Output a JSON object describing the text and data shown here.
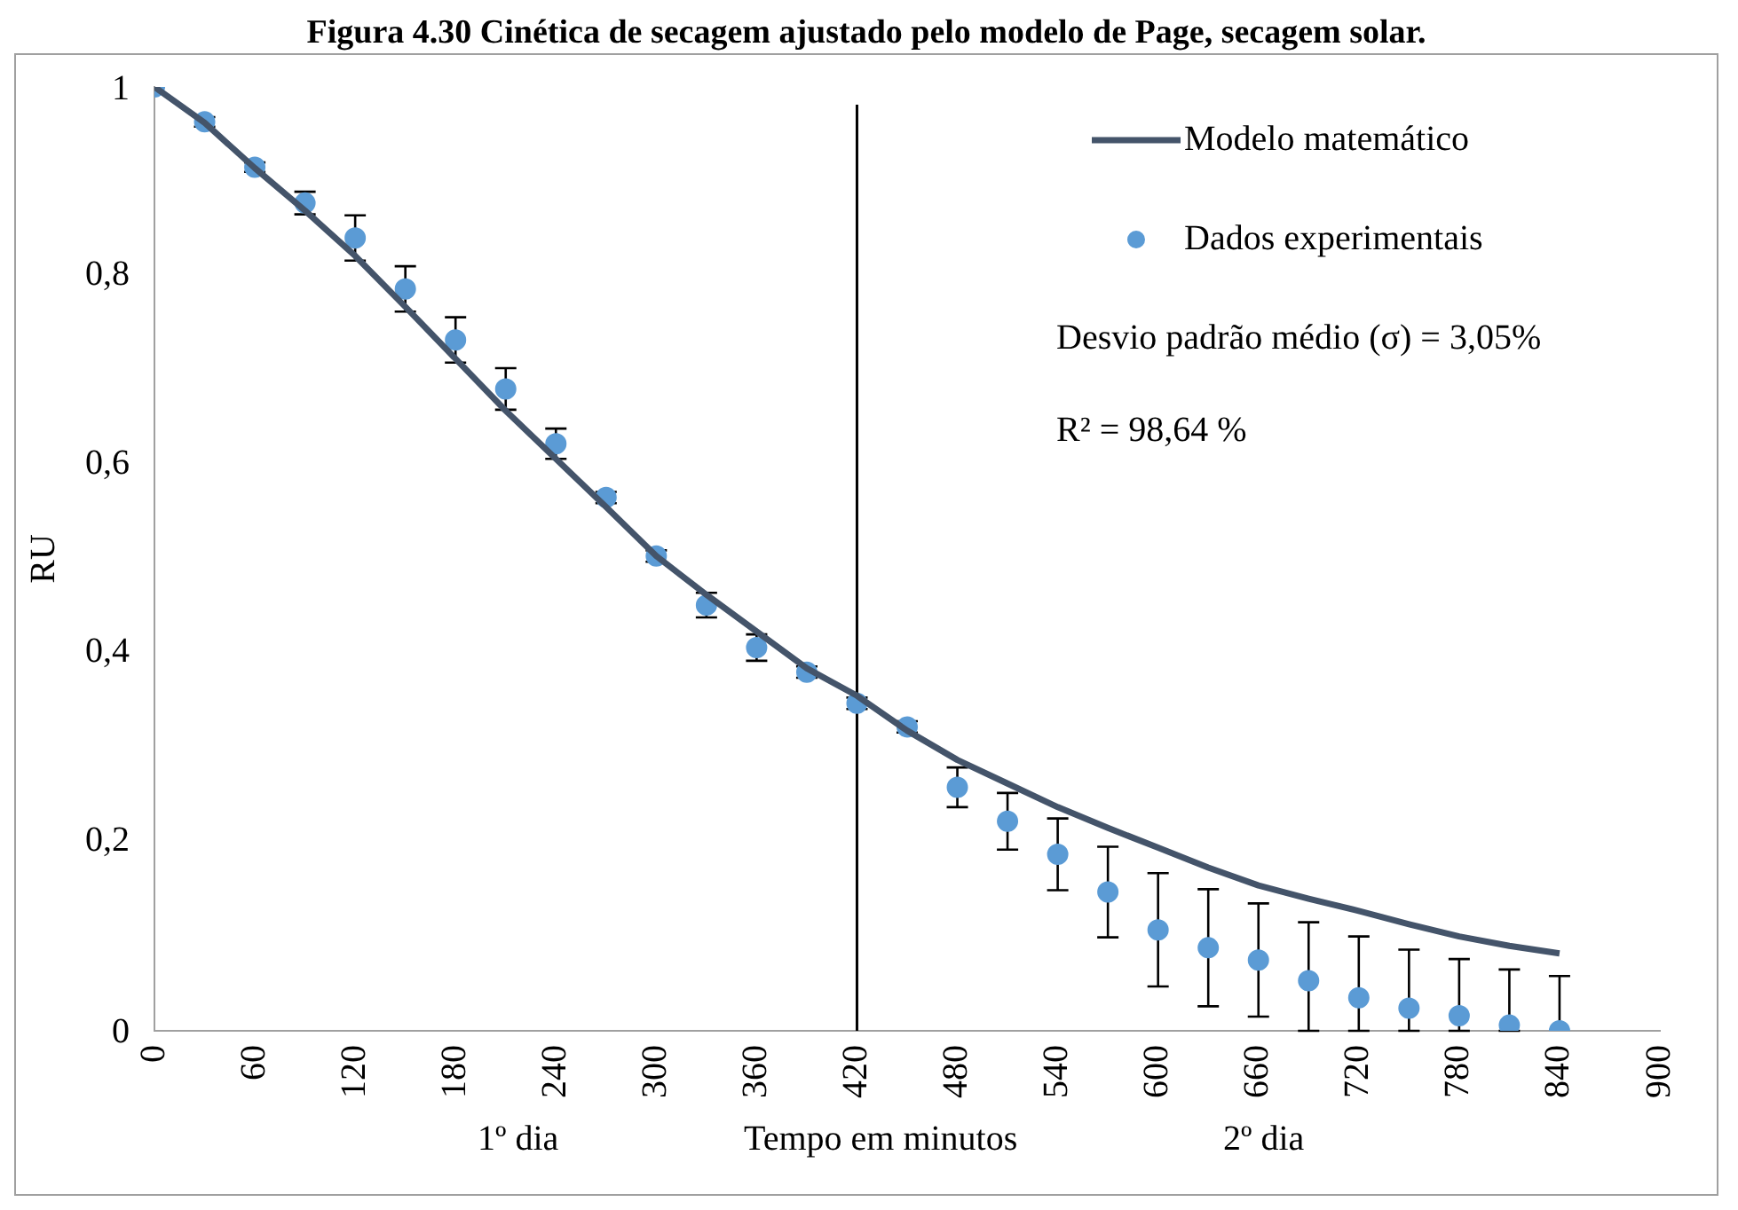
{
  "chart_data": {
    "type": "scatter",
    "title": "Figura 4.30 Cinética de secagem ajustado pelo modelo de Page, secagem solar.",
    "xlabel": "Tempo em minutos",
    "ylabel": "RU",
    "annotations": [
      "1º dia",
      "2º dia",
      "Desvio padrão médio (σ) = 3,05%",
      "R² = 98,64 %"
    ],
    "xlim": [
      0,
      900
    ],
    "xticks": [
      0,
      60,
      120,
      180,
      240,
      300,
      360,
      420,
      480,
      540,
      600,
      660,
      720,
      780,
      840,
      900
    ],
    "ylim": [
      0,
      1
    ],
    "yticks": [
      0,
      {
        "value": 0.2,
        "label": "0,2"
      },
      {
        "value": 0.4,
        "label": "0,4"
      },
      {
        "value": 0.6,
        "label": "0,6"
      },
      {
        "value": 0.8,
        "label": "0,8"
      },
      1
    ],
    "grid": false,
    "legend": "top right",
    "ref_lines": [
      {
        "axis": "x",
        "value": 420,
        "color": "#000000"
      }
    ],
    "series": [
      {
        "name": "Modelo matemático",
        "type": "line",
        "color": "#44546a",
        "marker": "none",
        "line_style": "solid",
        "x": [
          0,
          30,
          60,
          90,
          120,
          150,
          180,
          210,
          240,
          270,
          300,
          330,
          360,
          390,
          420,
          450,
          480,
          510,
          540,
          570,
          600,
          630,
          660,
          690,
          720,
          750,
          780,
          810,
          840
        ],
        "values": [
          1.0,
          0.962,
          0.914,
          0.869,
          0.821,
          0.767,
          0.712,
          0.657,
          0.606,
          0.555,
          0.503,
          0.462,
          0.423,
          0.384,
          0.355,
          0.318,
          0.287,
          0.262,
          0.237,
          0.215,
          0.194,
          0.173,
          0.154,
          0.14,
          0.127,
          0.113,
          0.1,
          0.09,
          0.082
        ]
      },
      {
        "name": "Dados experimentais",
        "color": "#5b9bd5",
        "marker": "circle",
        "x": [
          0,
          30,
          60,
          90,
          120,
          150,
          180,
          210,
          240,
          270,
          300,
          330,
          360,
          390,
          420,
          450,
          480,
          510,
          540,
          570,
          600,
          630,
          660,
          690,
          720,
          750,
          780,
          810,
          840
        ],
        "values": [
          1.0,
          0.963,
          0.915,
          0.877,
          0.84,
          0.786,
          0.732,
          0.68,
          0.622,
          0.565,
          0.503,
          0.451,
          0.406,
          0.38,
          0.347,
          0.322,
          0.258,
          0.222,
          0.187,
          0.147,
          0.107,
          0.088,
          0.075,
          0.053,
          0.035,
          0.024,
          0.016,
          0.006,
          0.0
        ],
        "errors": [
          0,
          0.005,
          0.005,
          0.012,
          0.024,
          0.024,
          0.024,
          0.022,
          0.016,
          0.006,
          0.006,
          0.013,
          0.014,
          0.006,
          0.006,
          0.006,
          0.021,
          0.03,
          0.038,
          0.048,
          0.06,
          0.062,
          0.06,
          [
            0,
            0.115
          ],
          [
            0,
            0.1
          ],
          [
            0,
            0.086
          ],
          [
            0,
            0.076
          ],
          [
            0,
            0.065
          ],
          [
            0,
            0.058
          ]
        ]
      }
    ]
  }
}
